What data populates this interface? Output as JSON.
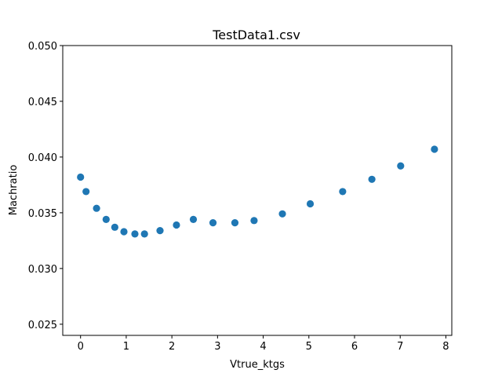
{
  "chart_data": {
    "type": "scatter",
    "title": "TestData1.csv",
    "xlabel": "Vtrue_ktgs",
    "ylabel": "Machratio",
    "xlim": [
      -0.39,
      8.13
    ],
    "ylim": [
      0.024,
      0.05
    ],
    "xticks": [
      0,
      1,
      2,
      3,
      4,
      5,
      6,
      7,
      8
    ],
    "yticks": [
      0.025,
      0.03,
      0.035,
      0.04,
      0.045,
      0.05
    ],
    "ytick_labels": [
      "0.025",
      "0.030",
      "0.035",
      "0.040",
      "0.045",
      "0.050"
    ],
    "grid": false,
    "marker_color": "#1f77b4",
    "series": [
      {
        "x": [
          0.0,
          0.12,
          0.35,
          0.56,
          0.75,
          0.95,
          1.19,
          1.4,
          1.74,
          2.1,
          2.47,
          2.9,
          3.38,
          3.8,
          4.42,
          5.03,
          5.74,
          6.38,
          7.01,
          7.75
        ],
        "y": [
          0.0382,
          0.0369,
          0.0354,
          0.0344,
          0.0337,
          0.0333,
          0.0331,
          0.0331,
          0.0334,
          0.0339,
          0.0344,
          0.0341,
          0.0341,
          0.0343,
          0.0349,
          0.0358,
          0.0369,
          0.038,
          0.0392,
          0.0407
        ]
      }
    ]
  }
}
